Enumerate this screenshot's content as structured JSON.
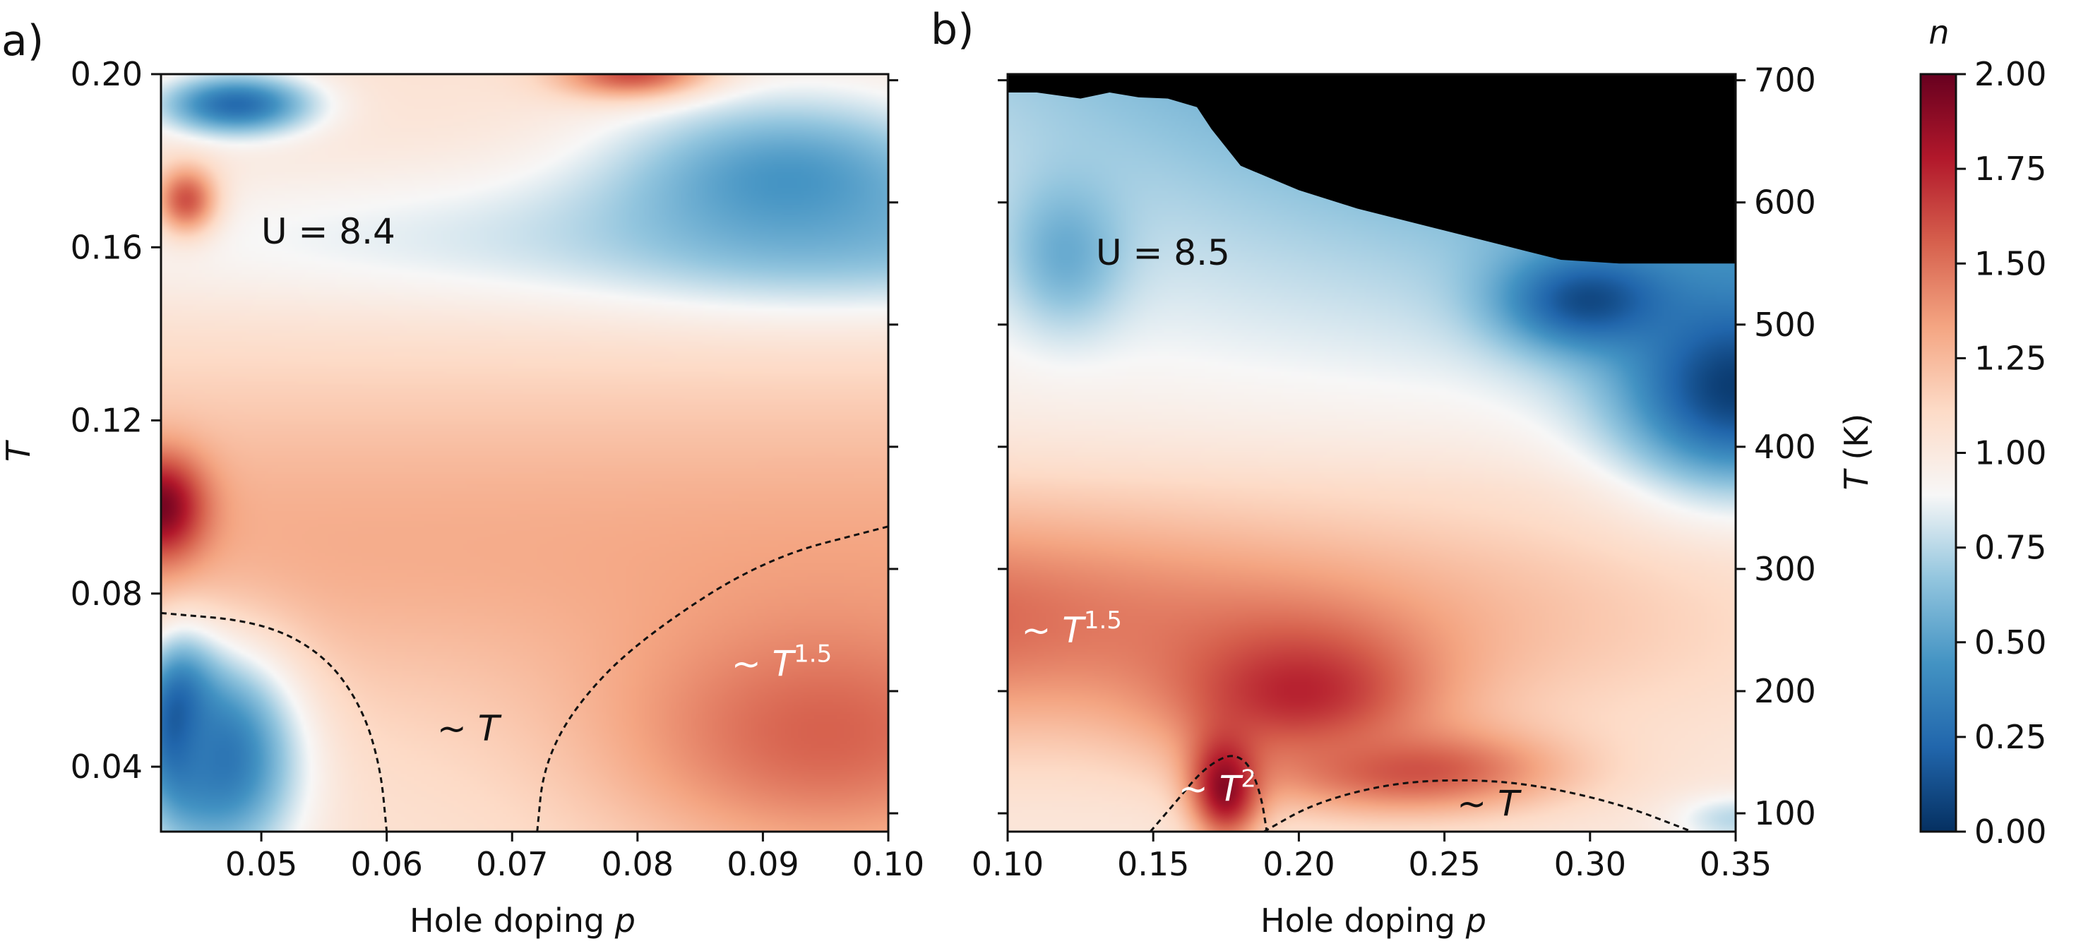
{
  "chart_data": [
    {
      "type": "heatmap",
      "panel_label": "a)",
      "title": "",
      "xlabel": "Hole doping",
      "xlabel_var": "p",
      "ylabel": "T",
      "xlim": [
        0.042,
        0.1
      ],
      "ylim": [
        0.025,
        0.2
      ],
      "x_ticks": [
        "0.05",
        "0.06",
        "0.07",
        "0.08",
        "0.09",
        "0.10"
      ],
      "x_tick_values": [
        0.05,
        0.06,
        0.07,
        0.08,
        0.09,
        0.1
      ],
      "y_ticks": [
        "0.04",
        "0.08",
        "0.12",
        "0.16",
        "0.20"
      ],
      "y_tick_values": [
        0.04,
        0.08,
        0.12,
        0.16,
        0.2
      ],
      "right_minor_ticks": [
        100,
        200,
        300,
        400,
        500,
        600,
        700
      ],
      "U_label": "U = 8.4",
      "annotations": [
        {
          "text": "~ T",
          "x": 0.0665,
          "y": 0.046,
          "color": "#111111"
        },
        {
          "text": "~ T",
          "sup": "1.5",
          "x": 0.0915,
          "y": 0.061,
          "color": "#ffffff"
        }
      ],
      "boundaries": [
        {
          "style": "dashed",
          "points": [
            [
              0.042,
              0.0755
            ],
            [
              0.05,
              0.0735
            ],
            [
              0.055,
              0.066
            ],
            [
              0.058,
              0.054
            ],
            [
              0.0595,
              0.04
            ],
            [
              0.06,
              0.025
            ]
          ]
        },
        {
          "style": "dashed",
          "points": [
            [
              0.072,
              0.025
            ],
            [
              0.0725,
              0.04
            ],
            [
              0.075,
              0.054
            ],
            [
              0.08,
              0.069
            ],
            [
              0.09,
              0.088
            ],
            [
              0.1,
              0.0955
            ]
          ]
        }
      ],
      "hotspots": [
        {
          "x": 0.0435,
          "y": 0.0495,
          "n": 0.0,
          "sx": 0.003,
          "sy": 0.018
        },
        {
          "x": 0.047,
          "y": 0.042,
          "n": 0.3,
          "sx": 0.006,
          "sy": 0.024
        },
        {
          "x": 0.042,
          "y": 0.1,
          "n": 1.95,
          "sx": 0.0035,
          "sy": 0.012
        },
        {
          "x": 0.044,
          "y": 0.171,
          "n": 1.6,
          "sx": 0.0025,
          "sy": 0.008
        },
        {
          "x": 0.08,
          "y": 0.2,
          "n": 1.75,
          "sx": 0.006,
          "sy": 0.006
        },
        {
          "x": 0.048,
          "y": 0.193,
          "n": 0.25,
          "sx": 0.006,
          "sy": 0.007
        },
        {
          "x": 0.092,
          "y": 0.175,
          "n": 0.45,
          "sx": 0.014,
          "sy": 0.02
        },
        {
          "x": 0.095,
          "y": 0.048,
          "n": 1.55,
          "sx": 0.018,
          "sy": 0.03
        }
      ]
    },
    {
      "type": "heatmap",
      "panel_label": "b)",
      "title": "",
      "xlabel": "Hole doping",
      "xlabel_var": "p",
      "ylabel": "T (K)",
      "xlim": [
        0.1,
        0.35
      ],
      "ylim": [
        85,
        705
      ],
      "x_ticks": [
        "0.10",
        "0.15",
        "0.20",
        "0.25",
        "0.30",
        "0.35"
      ],
      "x_tick_values": [
        0.1,
        0.15,
        0.2,
        0.25,
        0.3,
        0.35
      ],
      "y_ticks": [
        "100",
        "200",
        "300",
        "400",
        "500",
        "600",
        "700"
      ],
      "y_tick_values": [
        100,
        200,
        300,
        400,
        500,
        600,
        700
      ],
      "U_label": "U = 8.5",
      "annotations": [
        {
          "text": "~ T",
          "sup": "1.5",
          "x": 0.122,
          "y": 240,
          "color": "#ffffff"
        },
        {
          "text": "~ T",
          "sup": "2",
          "x": 0.172,
          "y": 110,
          "color": "#ffffff"
        },
        {
          "text": "~ T",
          "x": 0.265,
          "y": 98,
          "color": "#111111"
        }
      ],
      "boundaries": [
        {
          "style": "dashed",
          "points": [
            [
              0.149,
              85
            ],
            [
              0.158,
              110
            ],
            [
              0.166,
              133
            ],
            [
              0.173,
              145
            ],
            [
              0.178,
              148
            ],
            [
              0.183,
              140
            ],
            [
              0.187,
              115
            ],
            [
              0.189,
              85
            ]
          ]
        },
        {
          "style": "dashed",
          "points": [
            [
              0.188,
              85
            ],
            [
              0.205,
              108
            ],
            [
              0.23,
              124
            ],
            [
              0.255,
              128
            ],
            [
              0.28,
              124
            ],
            [
              0.31,
              108
            ],
            [
              0.335,
              85
            ]
          ]
        }
      ],
      "masked_region_top": [
        [
          0.1,
          705
        ],
        [
          0.1,
          690
        ],
        [
          0.11,
          690
        ],
        [
          0.125,
          685
        ],
        [
          0.135,
          690
        ],
        [
          0.145,
          686
        ],
        [
          0.155,
          685
        ],
        [
          0.165,
          678
        ],
        [
          0.17,
          660
        ],
        [
          0.18,
          630
        ],
        [
          0.2,
          610
        ],
        [
          0.22,
          595
        ],
        [
          0.25,
          577
        ],
        [
          0.27,
          565
        ],
        [
          0.29,
          553
        ],
        [
          0.31,
          550
        ],
        [
          0.35,
          550
        ],
        [
          0.35,
          705
        ]
      ],
      "hotspots": [
        {
          "x": 0.175,
          "y": 125,
          "n": 2.0,
          "sx": 0.012,
          "sy": 45
        },
        {
          "x": 0.2,
          "y": 200,
          "n": 1.75,
          "sx": 0.045,
          "sy": 60
        },
        {
          "x": 0.24,
          "y": 135,
          "n": 1.6,
          "sx": 0.05,
          "sy": 35
        },
        {
          "x": 0.35,
          "y": 450,
          "n": 0.05,
          "sx": 0.04,
          "sy": 80
        },
        {
          "x": 0.3,
          "y": 520,
          "n": 0.1,
          "sx": 0.03,
          "sy": 40
        },
        {
          "x": 0.12,
          "y": 560,
          "n": 0.55,
          "sx": 0.02,
          "sy": 60
        },
        {
          "x": 0.35,
          "y": 95,
          "n": 0.75,
          "sx": 0.02,
          "sy": 20
        }
      ]
    }
  ],
  "colorbar": {
    "label": "n",
    "min": 0.0,
    "max": 2.0,
    "ticks": [
      "0.00",
      "0.25",
      "0.50",
      "0.75",
      "1.00",
      "1.25",
      "1.50",
      "1.75",
      "2.00"
    ],
    "tick_values": [
      0.0,
      0.25,
      0.5,
      0.75,
      1.0,
      1.25,
      1.5,
      1.75,
      2.0
    ],
    "colormap": "RdBu_r",
    "colors": [
      "#053061",
      "#2166ac",
      "#4393c3",
      "#92c5de",
      "#f7f7f7",
      "#fddbc7",
      "#f4a582",
      "#d6604d",
      "#b2182b",
      "#67001f"
    ]
  },
  "mask_color": "#000000"
}
